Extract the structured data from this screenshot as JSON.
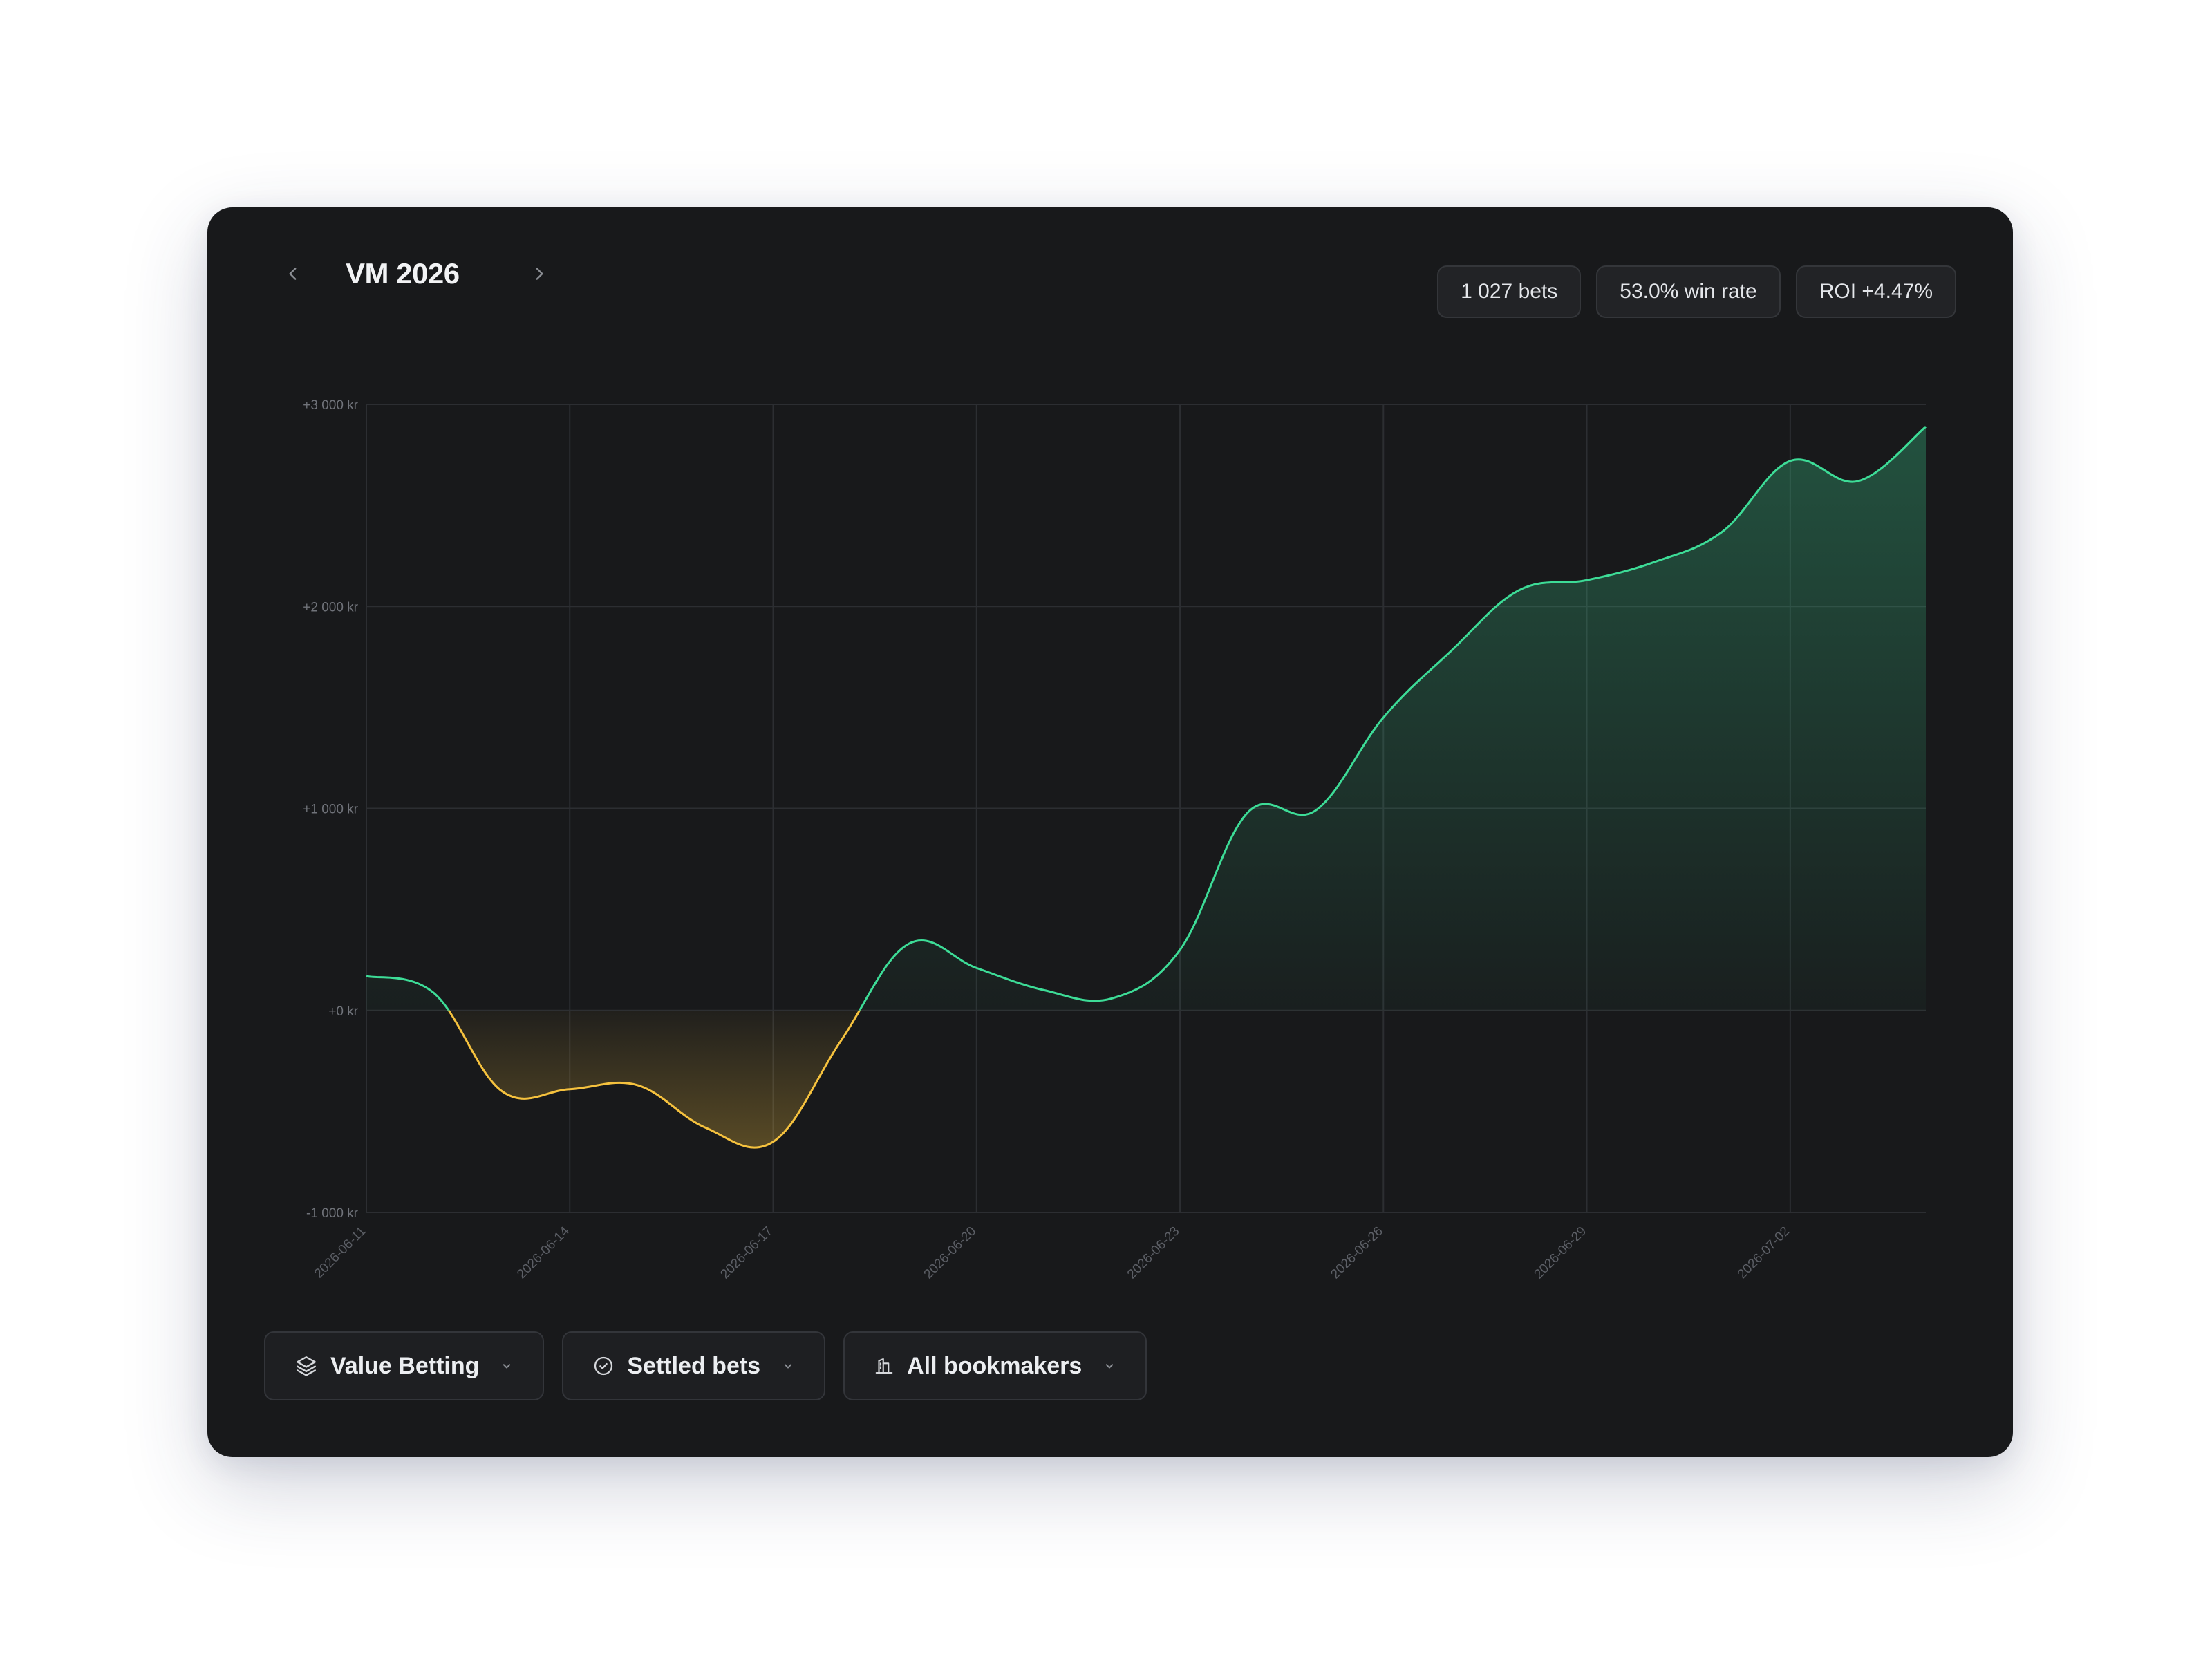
{
  "header": {
    "title": "VM 2026",
    "prev_icon": "chevron-left-icon",
    "next_icon": "chevron-right-icon"
  },
  "stats": {
    "bets": "1 027 bets",
    "win_rate": "53.0% win rate",
    "roi": "ROI +4.47%"
  },
  "filters": [
    {
      "label": "Value Betting",
      "icon": "layers-icon"
    },
    {
      "label": "Settled bets",
      "icon": "check-circle-icon"
    },
    {
      "label": "All bookmakers",
      "icon": "bank-icon"
    }
  ],
  "colors": {
    "positive": "#3ddc97",
    "negative": "#f6c23e",
    "card_background": "#18191b",
    "grid": "#2c2e32"
  },
  "chart_data": {
    "type": "area",
    "currency": "kr",
    "ylim": [
      -1000,
      3000
    ],
    "y_ticks": [
      -1000,
      0,
      1000,
      2000,
      3000
    ],
    "y_tick_labels": [
      "-1 000 kr",
      "+0 kr",
      "+1 000 kr",
      "+2 000 kr",
      "+3 000 kr"
    ],
    "x_ticks": [
      "2026-06-11",
      "2026-06-14",
      "2026-06-17",
      "2026-06-20",
      "2026-06-23",
      "2026-06-26",
      "2026-06-29",
      "2026-07-02"
    ],
    "x_tick_labels": [
      "2026-06-11",
      "2026-06-14",
      "2026-06-17",
      "2026-06-20",
      "2026-06-23",
      "2026-06-26",
      "2026-06-29",
      "2026-07-02"
    ],
    "xlim": [
      "2026-06-11",
      "2026-07-04"
    ],
    "grid": true,
    "series": [
      {
        "x": [
          "2026-06-11",
          "2026-06-12",
          "2026-06-13",
          "2026-06-14",
          "2026-06-15",
          "2026-06-16",
          "2026-06-17",
          "2026-06-18",
          "2026-06-19",
          "2026-06-20",
          "2026-06-21",
          "2026-06-22",
          "2026-06-23",
          "2026-06-24",
          "2026-06-25",
          "2026-06-26",
          "2026-06-27",
          "2026-06-28",
          "2026-06-29",
          "2026-06-30",
          "2026-07-01",
          "2026-07-02",
          "2026-07-03",
          "2026-07-04"
        ],
        "values": [
          170,
          85,
          -400,
          -390,
          -370,
          -580,
          -650,
          -150,
          330,
          210,
          100,
          60,
          300,
          980,
          990,
          1450,
          1780,
          2080,
          2130,
          2220,
          2370,
          2720,
          2620,
          2890
        ]
      }
    ]
  }
}
